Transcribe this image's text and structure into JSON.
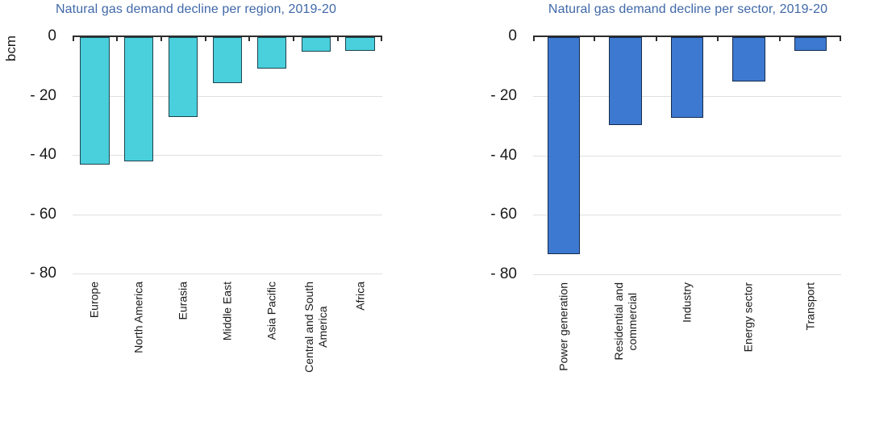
{
  "page": {
    "background": "#ffffff",
    "text_color": "#1a1a1a",
    "axis_color": "#2d2d2d",
    "gridline_color": "#dfdfdf"
  },
  "chart_data": [
    {
      "type": "bar",
      "title": "Natural gas demand decline per region, 2019-20",
      "title_color": "#3f68a8",
      "ylabel": "bcm",
      "xlabel": "",
      "categories": [
        "Europe",
        "North America",
        "Eurasia",
        "Middle East",
        "Asia Pacific",
        "Central and South\nAmerica",
        "Africa"
      ],
      "values": [
        -43,
        -42,
        -27,
        -15.5,
        -10.5,
        -5,
        -4.5
      ],
      "unit": "bcm",
      "ylim": [
        -80,
        0
      ],
      "yticks": {
        "values": [
          0,
          -20,
          -40,
          -60,
          -80
        ],
        "labels": [
          "0",
          "- 20",
          "- 40",
          "- 60",
          "- 80"
        ]
      },
      "bar_color": "#4acfdc",
      "bar_border_color": "#1d444e",
      "layout": {
        "grid": true,
        "gridline_color": "#dfdfdf",
        "bar_width_fraction": 0.66,
        "x_label_rotation_deg": 90,
        "legend": "none"
      }
    },
    {
      "type": "bar",
      "title": "Natural gas demand decline per sector, 2019-20",
      "title_color": "#3f68a8",
      "ylabel": "",
      "xlabel": "",
      "categories": [
        "Power generation",
        "Residential and\ncommercial",
        "Industry",
        "Energy sector",
        "Transport"
      ],
      "values": [
        -73,
        -29.5,
        -27,
        -15,
        -4.5
      ],
      "unit": "bcm",
      "ylim": [
        -80,
        0
      ],
      "yticks": {
        "values": [
          0,
          -20,
          -40,
          -60,
          -80
        ],
        "labels": [
          "0",
          "- 20",
          "- 40",
          "- 60",
          "- 80"
        ]
      },
      "bar_color": "#3d79d0",
      "bar_border_color": "#142b4d",
      "layout": {
        "grid": true,
        "gridline_color": "#dfdfdf",
        "bar_width_fraction": 0.53,
        "x_label_rotation_deg": 90,
        "legend": "none"
      }
    }
  ]
}
